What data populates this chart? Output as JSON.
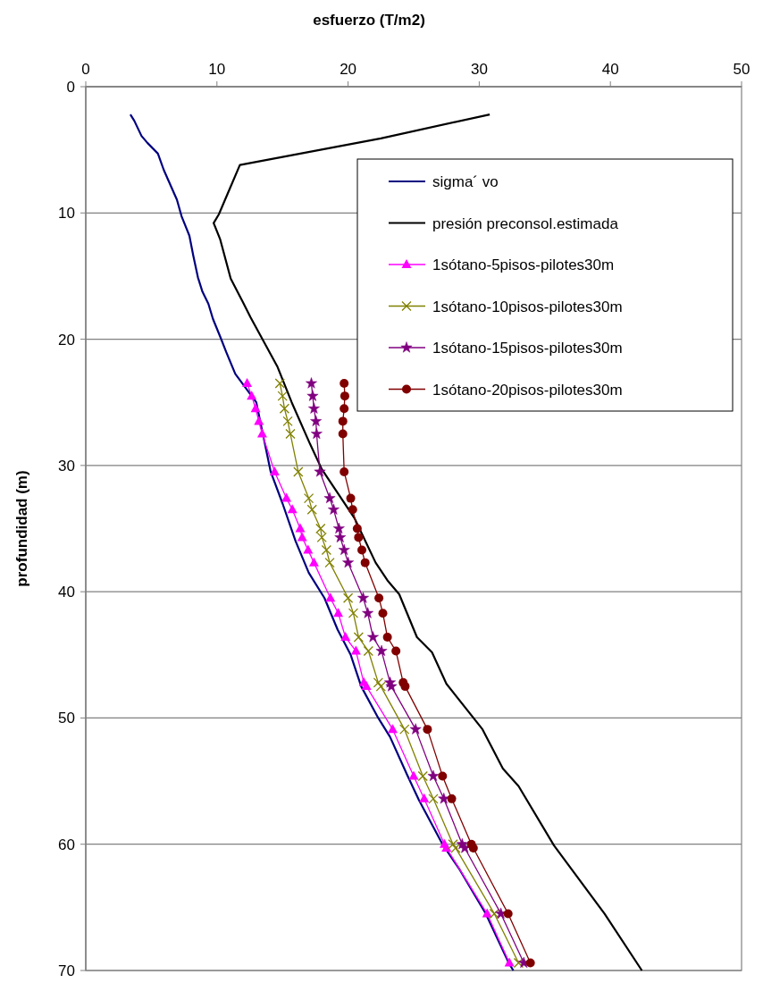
{
  "chart_data": {
    "type": "line",
    "xlabel": "esfuerzo (T/m2)",
    "ylabel": "profundidad (m)",
    "xlim": [
      0,
      50
    ],
    "xticks": [
      0,
      10,
      20,
      30,
      40,
      50
    ],
    "ylim": [
      70,
      0
    ],
    "yticks": [
      0,
      10,
      20,
      30,
      40,
      50,
      60,
      70
    ],
    "grid": "y",
    "legend": "top right",
    "series": [
      {
        "name": "sigma´ vo",
        "color": "#000080",
        "marker": "none",
        "x": [
          3.4,
          3.7,
          4.25,
          4.7,
          5.5,
          5.95,
          6.95,
          7.3,
          7.9,
          8.2,
          8.55,
          8.9,
          9.35,
          9.7,
          10.25,
          10.7,
          11.4,
          13.0,
          13.6,
          14.1,
          15.0,
          16.0,
          17.0,
          18.2,
          19.2,
          20.2,
          21.0,
          22.3,
          23.2,
          24.5,
          25.4,
          27.2,
          28.5,
          30.5,
          32.3,
          32.6
        ],
        "values": [
          2.2,
          2.7,
          3.9,
          4.45,
          5.3,
          6.6,
          8.95,
          10.25,
          11.8,
          13.4,
          15.1,
          16.25,
          17.2,
          18.4,
          19.8,
          21.0,
          22.75,
          25,
          28,
          30.5,
          33,
          36,
          38.5,
          40.5,
          43,
          45,
          47.5,
          50,
          51.5,
          54.5,
          56.5,
          60,
          62,
          65.5,
          69.5,
          70
        ]
      },
      {
        "name": "presión preconsol.estimada",
        "color": "#000000",
        "marker": "none",
        "x": [
          30.8,
          22.5,
          11.75,
          10.15,
          9.75,
          10.25,
          11.05,
          11.95,
          12.55,
          14.6,
          15.7,
          17.1,
          18.0,
          20.5,
          22.1,
          23.0,
          23.9,
          25.25,
          26.4,
          27.5,
          30.25,
          31.8,
          33.0,
          35.7,
          39.55,
          42.4
        ],
        "values": [
          2.2,
          4.1,
          6.2,
          10.1,
          10.8,
          12.1,
          15.2,
          17.0,
          18.25,
          22.15,
          25.0,
          28.3,
          30.3,
          34.2,
          37.7,
          39.1,
          40.2,
          43.6,
          44.8,
          47.3,
          50.9,
          54.0,
          55.4,
          60.1,
          65.5,
          70
        ]
      },
      {
        "name": "1sótano-5pisos-pilotes30m",
        "color": "#ff00ff",
        "marker": "triangle",
        "x": [
          12.3,
          12.65,
          12.95,
          13.2,
          13.45,
          14.4,
          15.3,
          15.75,
          16.35,
          16.5,
          16.95,
          17.4,
          18.65,
          19.25,
          19.8,
          20.6,
          21.2,
          21.4,
          23.4,
          25.0,
          25.8,
          27.35,
          27.5,
          30.6,
          32.3
        ],
        "values": [
          23.5,
          24.5,
          25.5,
          26.5,
          27.5,
          30.5,
          32.6,
          33.5,
          35.0,
          35.7,
          36.7,
          37.7,
          40.5,
          41.7,
          43.6,
          44.7,
          47.2,
          47.5,
          50.9,
          54.6,
          56.4,
          60.0,
          60.3,
          65.5,
          69.4
        ]
      },
      {
        "name": "1sótano-10pisos-pilotes30m",
        "color": "#808000",
        "marker": "cross",
        "x": [
          14.8,
          15.0,
          15.15,
          15.4,
          15.6,
          16.2,
          17.0,
          17.25,
          17.9,
          18.0,
          18.35,
          18.6,
          20.0,
          20.4,
          20.8,
          21.55,
          22.3,
          22.5,
          24.3,
          25.7,
          26.5,
          28.0,
          28.2,
          31.15,
          33.0
        ],
        "values": [
          23.5,
          24.5,
          25.5,
          26.5,
          27.5,
          30.5,
          32.6,
          33.5,
          35.0,
          35.7,
          36.7,
          37.7,
          40.5,
          41.7,
          43.6,
          44.7,
          47.2,
          47.5,
          50.9,
          54.6,
          56.4,
          60.0,
          60.3,
          65.5,
          69.4
        ]
      },
      {
        "name": "1sótano-15pisos-pilotes30m",
        "color": "#800080",
        "marker": "star",
        "x": [
          17.2,
          17.3,
          17.4,
          17.55,
          17.6,
          17.85,
          18.6,
          18.9,
          19.3,
          19.4,
          19.7,
          20.0,
          21.15,
          21.5,
          21.9,
          22.55,
          23.2,
          23.3,
          25.15,
          26.5,
          27.3,
          28.7,
          28.9,
          31.65,
          33.4
        ],
        "values": [
          23.5,
          24.5,
          25.5,
          26.5,
          27.5,
          30.5,
          32.6,
          33.5,
          35.0,
          35.7,
          36.7,
          37.7,
          40.5,
          41.7,
          43.6,
          44.7,
          47.2,
          47.5,
          50.9,
          54.6,
          56.4,
          60.0,
          60.3,
          65.5,
          69.4
        ]
      },
      {
        "name": "1sótano-20pisos-pilotes30m",
        "color": "#800000",
        "marker": "circle",
        "x": [
          19.7,
          19.75,
          19.7,
          19.6,
          19.6,
          19.7,
          20.2,
          20.35,
          20.7,
          20.8,
          21.05,
          21.3,
          22.35,
          22.65,
          23.0,
          23.65,
          24.2,
          24.35,
          26.05,
          27.2,
          27.9,
          29.4,
          29.55,
          32.2,
          33.9
        ],
        "values": [
          23.5,
          24.5,
          25.5,
          26.5,
          27.5,
          30.5,
          32.6,
          33.5,
          35.0,
          35.7,
          36.7,
          37.7,
          40.5,
          41.7,
          43.6,
          44.7,
          47.2,
          47.5,
          50.9,
          54.6,
          56.4,
          60.0,
          60.3,
          65.5,
          69.4
        ]
      }
    ]
  }
}
